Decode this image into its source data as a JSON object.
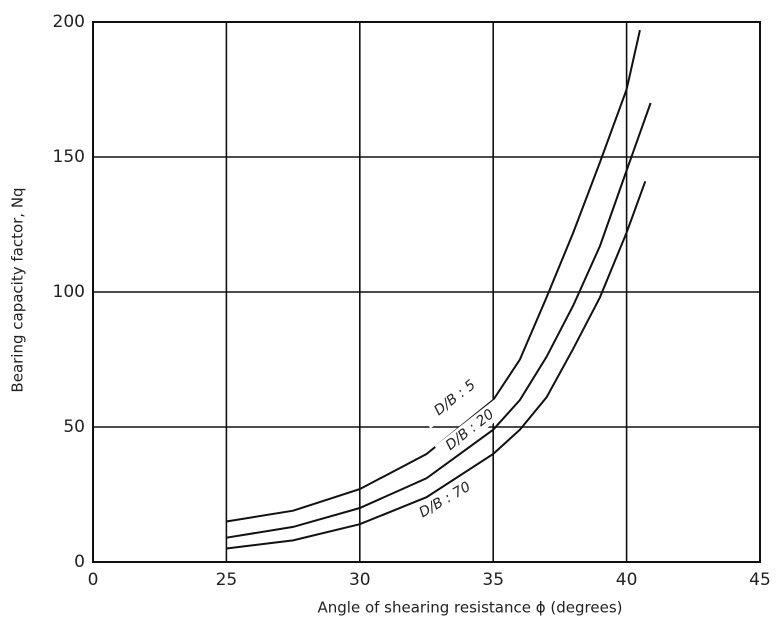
{
  "chart_data": {
    "type": "line",
    "x_label": "Angle of shearing resistance ϕ (degrees)",
    "y_label": "Bearing capacity factor, Nq",
    "xlim": [
      20,
      45
    ],
    "ylim": [
      0,
      200
    ],
    "xticks": [
      {
        "value": 20,
        "label": "0"
      },
      25,
      30,
      35,
      40,
      45
    ],
    "yticks": [
      0,
      50,
      100,
      150,
      200
    ],
    "grid": true,
    "series": [
      {
        "name": "D/B : 5",
        "color": "#111111",
        "x": [
          25,
          27.5,
          30,
          32.5,
          35,
          36,
          37,
          38,
          39,
          40,
          40.5
        ],
        "values": [
          15,
          19,
          27,
          40,
          60,
          75,
          98,
          122,
          148,
          175,
          197
        ]
      },
      {
        "name": "D/B : 20",
        "color": "#111111",
        "x": [
          25,
          27.5,
          30,
          32.5,
          35,
          36,
          37,
          38,
          39,
          40,
          40.9
        ],
        "values": [
          9,
          13,
          20,
          31,
          49,
          60,
          76,
          95,
          117,
          145,
          170
        ]
      },
      {
        "name": "D/B : 70",
        "color": "#111111",
        "x": [
          25,
          27.5,
          30,
          32.5,
          35,
          36,
          37,
          38,
          39,
          40,
          40.7
        ],
        "values": [
          5,
          8,
          14,
          24,
          40,
          49,
          61,
          79,
          98,
          122,
          141
        ]
      }
    ]
  }
}
